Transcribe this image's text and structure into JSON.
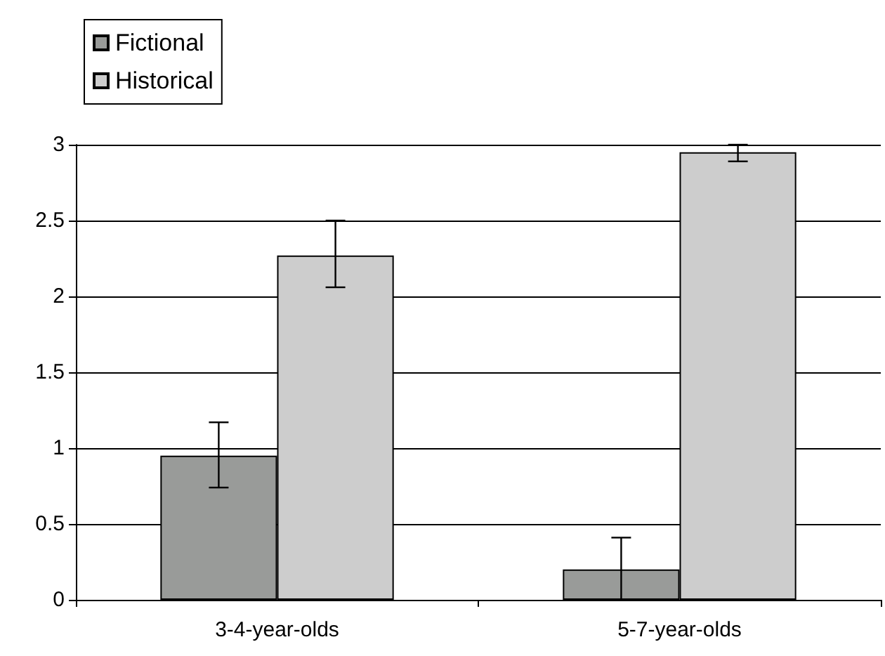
{
  "chart_data": {
    "type": "bar",
    "categories": [
      "3-4-year-olds",
      "5-7-year-olds"
    ],
    "series": [
      {
        "name": "Fictional",
        "color": "#999b99",
        "values": [
          0.95,
          0.2
        ],
        "errors": [
          [
            0.74,
            1.17
          ],
          [
            0,
            0.41
          ]
        ]
      },
      {
        "name": "Historical",
        "color": "#cdcdcd",
        "values": [
          2.27,
          2.95
        ],
        "errors": [
          [
            2.06,
            2.5
          ],
          [
            2.89,
            3.0
          ]
        ]
      }
    ],
    "ylim": [
      0,
      3
    ],
    "yticks": [
      0,
      0.5,
      1,
      1.5,
      2,
      2.5,
      3
    ],
    "grid": "y",
    "legend": "top left"
  }
}
